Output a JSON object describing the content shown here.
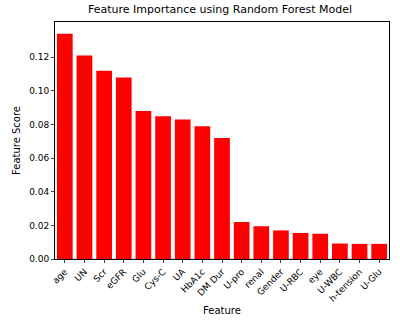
{
  "chart_data": {
    "type": "bar",
    "title": "Feature Importance using Random Forest Model",
    "x_label": "Feature",
    "y_label": "Feature Score",
    "categories": [
      "age",
      "UN",
      "Scr",
      "eGFR",
      "Glu",
      "Cys-C",
      "UA",
      "HbA1c",
      "DM Dur",
      "U-pro",
      "renal",
      "Gender",
      "U-RBC",
      "eye",
      "U-WBC",
      "h-tension",
      "U-Glu"
    ],
    "values": [
      0.134,
      0.121,
      0.112,
      0.108,
      0.088,
      0.085,
      0.083,
      0.079,
      0.072,
      0.022,
      0.0195,
      0.017,
      0.0155,
      0.015,
      0.0092,
      0.009,
      0.009
    ],
    "color": "#ff0000",
    "ylim": [
      0,
      0.141
    ],
    "yticks": [
      {
        "value": 0,
        "label": "0.00"
      },
      {
        "value": 0.02,
        "label": "0.02"
      },
      {
        "value": 0.04,
        "label": "0.04"
      },
      {
        "value": 0.06,
        "label": "0.06"
      },
      {
        "value": 0.08,
        "label": "0.08"
      },
      {
        "value": 0.1,
        "label": "0.10"
      },
      {
        "value": 0.12,
        "label": "0.12"
      }
    ],
    "grid": false
  }
}
